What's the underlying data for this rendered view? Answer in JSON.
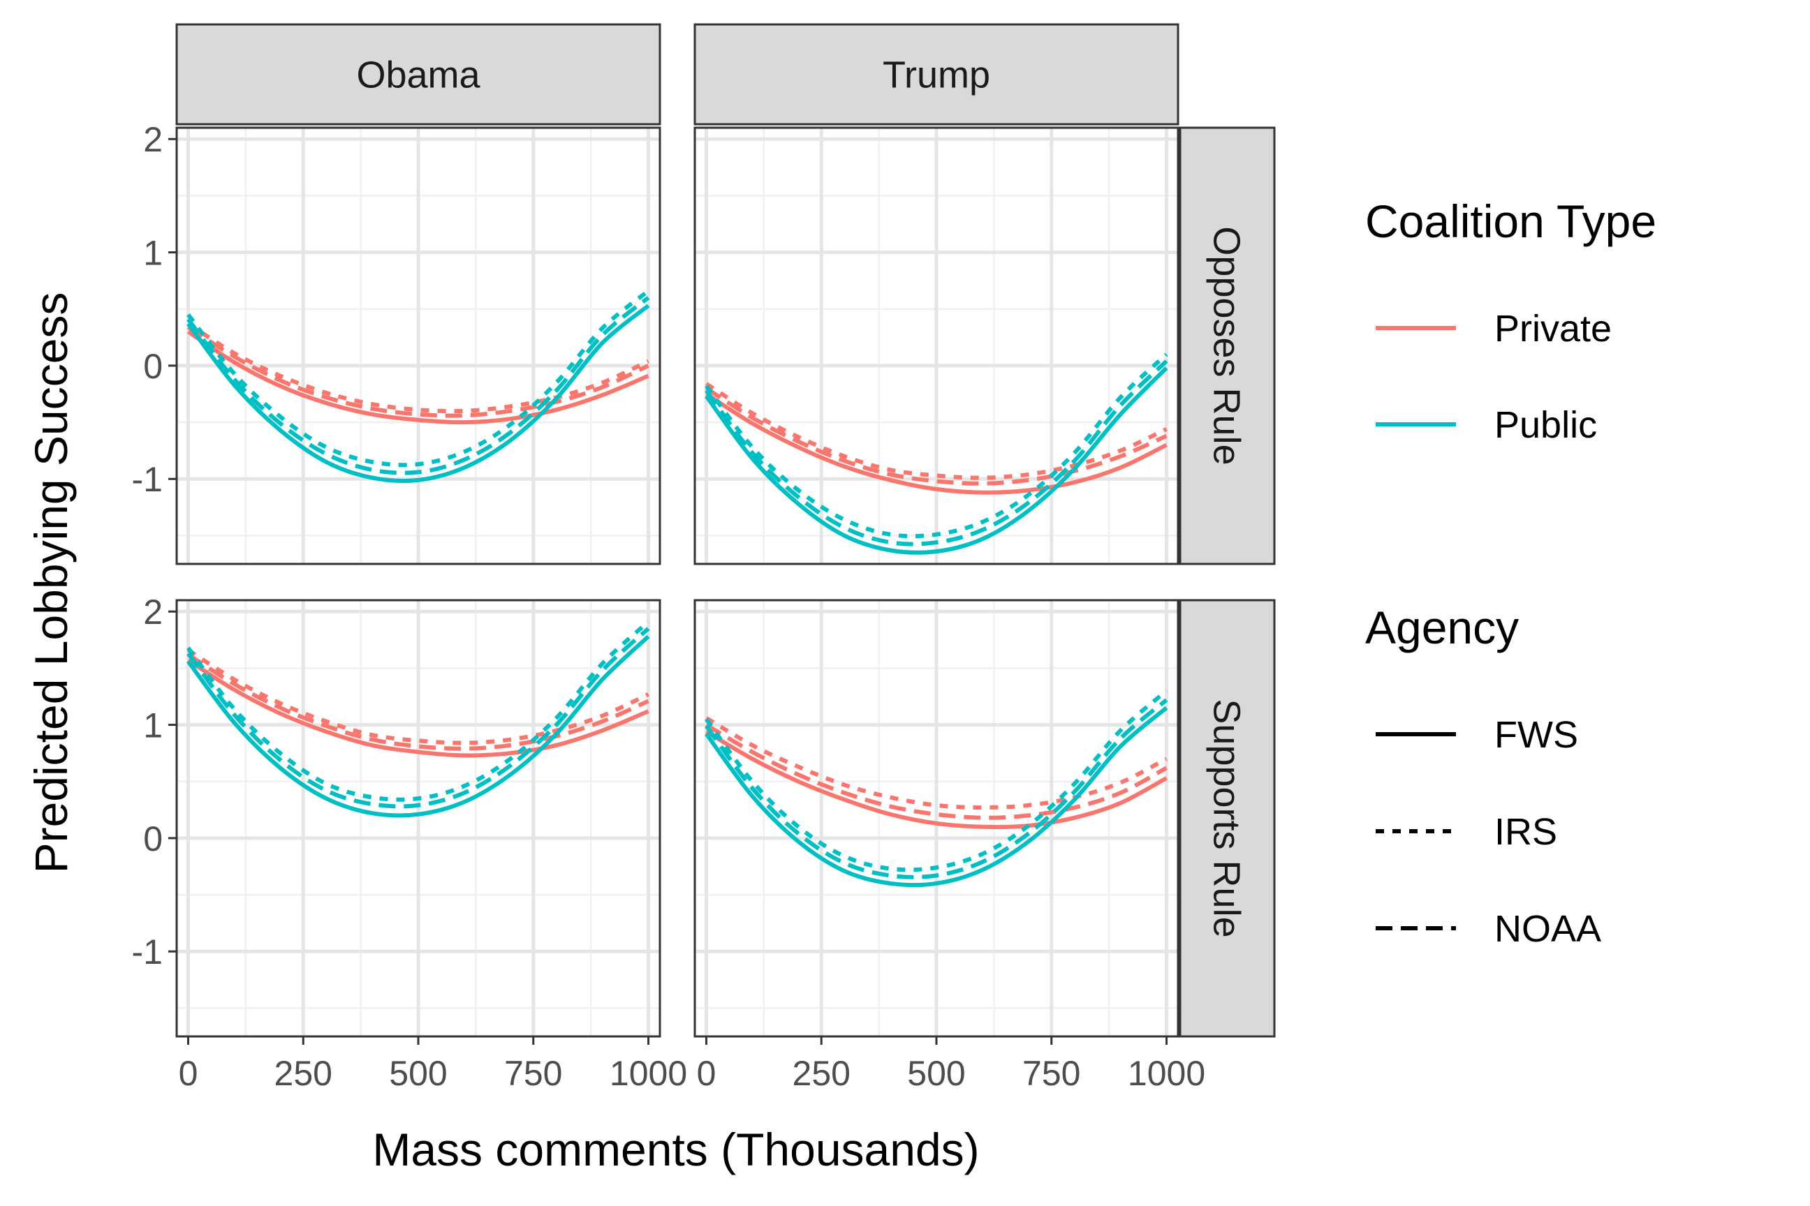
{
  "chart_data": {
    "type": "line",
    "facets": {
      "columns": [
        "Obama",
        "Trump"
      ],
      "rows": [
        "Opposes Rule",
        "Supports Rule"
      ]
    },
    "xlabel": "Mass comments (Thousands)",
    "ylabel": "Predicted Lobbying Success",
    "xlim": [
      -25,
      1025
    ],
    "ylim": [
      -1.75,
      2.1
    ],
    "x_ticks": [
      0,
      250,
      500,
      750,
      1000
    ],
    "x_tick_labels": [
      "0",
      "250",
      "500",
      "750",
      "1000"
    ],
    "y_ticks": [
      -1,
      0,
      1,
      2
    ],
    "y_tick_labels": [
      "-1",
      "0",
      "1",
      "2"
    ],
    "grid": true,
    "legend_position": "right",
    "legends": [
      {
        "title": "Coalition Type",
        "entries": [
          {
            "label": "Private",
            "color": "#F8766D"
          },
          {
            "label": "Public",
            "color": "#00BFC4"
          }
        ]
      },
      {
        "title": "Agency",
        "entries": [
          {
            "label": "FWS",
            "linetype": "solid"
          },
          {
            "label": "IRS",
            "linetype": "dotted"
          },
          {
            "label": "NOAA",
            "linetype": "dashed"
          }
        ]
      }
    ],
    "x": [
      0,
      100,
      200,
      300,
      400,
      500,
      600,
      700,
      800,
      900,
      1000
    ],
    "panels": [
      {
        "column": "Obama",
        "row": "Opposes Rule",
        "series": [
          {
            "coalition": "Private",
            "agency": "FWS",
            "values": [
              0.3,
              0.03,
              -0.18,
              -0.33,
              -0.43,
              -0.48,
              -0.5,
              -0.47,
              -0.39,
              -0.26,
              -0.09
            ]
          },
          {
            "coalition": "Private",
            "agency": "IRS",
            "values": [
              0.37,
              0.11,
              -0.09,
              -0.24,
              -0.34,
              -0.39,
              -0.4,
              -0.36,
              -0.28,
              -0.15,
              0.04
            ]
          },
          {
            "coalition": "Private",
            "agency": "NOAA",
            "values": [
              0.34,
              0.08,
              -0.13,
              -0.28,
              -0.38,
              -0.43,
              -0.44,
              -0.4,
              -0.32,
              -0.19,
              0.0
            ]
          },
          {
            "coalition": "Public",
            "agency": "FWS",
            "values": [
              0.37,
              -0.17,
              -0.57,
              -0.85,
              -0.99,
              -1.01,
              -0.9,
              -0.66,
              -0.29,
              0.2,
              0.53
            ]
          },
          {
            "coalition": "Public",
            "agency": "IRS",
            "values": [
              0.45,
              -0.07,
              -0.45,
              -0.72,
              -0.85,
              -0.87,
              -0.76,
              -0.52,
              -0.15,
              0.33,
              0.66
            ]
          },
          {
            "coalition": "Public",
            "agency": "NOAA",
            "values": [
              0.41,
              -0.12,
              -0.51,
              -0.78,
              -0.92,
              -0.94,
              -0.83,
              -0.59,
              -0.22,
              0.27,
              0.6
            ]
          }
        ]
      },
      {
        "column": "Trump",
        "row": "Opposes Rule",
        "series": [
          {
            "coalition": "Private",
            "agency": "FWS",
            "values": [
              -0.25,
              -0.51,
              -0.72,
              -0.89,
              -1.01,
              -1.09,
              -1.12,
              -1.1,
              -1.03,
              -0.9,
              -0.7
            ]
          },
          {
            "coalition": "Private",
            "agency": "IRS",
            "values": [
              -0.16,
              -0.42,
              -0.63,
              -0.8,
              -0.92,
              -0.97,
              -0.99,
              -0.96,
              -0.88,
              -0.75,
              -0.56
            ]
          },
          {
            "coalition": "Private",
            "agency": "NOAA",
            "values": [
              -0.2,
              -0.46,
              -0.67,
              -0.84,
              -0.96,
              -1.02,
              -1.04,
              -1.01,
              -0.93,
              -0.8,
              -0.62
            ]
          },
          {
            "coalition": "Public",
            "agency": "FWS",
            "values": [
              -0.27,
              -0.82,
              -1.22,
              -1.5,
              -1.63,
              -1.64,
              -1.53,
              -1.28,
              -0.91,
              -0.43,
              -0.02
            ]
          },
          {
            "coalition": "Public",
            "agency": "IRS",
            "values": [
              -0.18,
              -0.72,
              -1.1,
              -1.36,
              -1.49,
              -1.49,
              -1.38,
              -1.14,
              -0.77,
              -0.28,
              0.1
            ]
          },
          {
            "coalition": "Public",
            "agency": "NOAA",
            "values": [
              -0.22,
              -0.77,
              -1.16,
              -1.43,
              -1.56,
              -1.56,
              -1.45,
              -1.21,
              -0.84,
              -0.35,
              0.04
            ]
          }
        ]
      },
      {
        "column": "Obama",
        "row": "Supports Rule",
        "series": [
          {
            "coalition": "Private",
            "agency": "FWS",
            "values": [
              1.57,
              1.31,
              1.1,
              0.94,
              0.82,
              0.76,
              0.73,
              0.75,
              0.82,
              0.95,
              1.12
            ]
          },
          {
            "coalition": "Private",
            "agency": "IRS",
            "values": [
              1.66,
              1.4,
              1.19,
              1.03,
              0.91,
              0.86,
              0.84,
              0.87,
              0.95,
              1.08,
              1.27
            ]
          },
          {
            "coalition": "Private",
            "agency": "NOAA",
            "values": [
              1.62,
              1.36,
              1.15,
              0.99,
              0.87,
              0.81,
              0.79,
              0.82,
              0.9,
              1.03,
              1.21
            ]
          },
          {
            "coalition": "Public",
            "agency": "FWS",
            "values": [
              1.56,
              1.02,
              0.62,
              0.35,
              0.22,
              0.21,
              0.32,
              0.56,
              0.92,
              1.4,
              1.78
            ]
          },
          {
            "coalition": "Public",
            "agency": "IRS",
            "values": [
              1.68,
              1.14,
              0.75,
              0.48,
              0.36,
              0.35,
              0.46,
              0.7,
              1.06,
              1.54,
              1.91
            ]
          },
          {
            "coalition": "Public",
            "agency": "NOAA",
            "values": [
              1.63,
              1.09,
              0.69,
              0.42,
              0.3,
              0.29,
              0.4,
              0.64,
              1.0,
              1.48,
              1.85
            ]
          }
        ]
      },
      {
        "column": "Trump",
        "row": "Supports Rule",
        "series": [
          {
            "coalition": "Private",
            "agency": "FWS",
            "values": [
              0.94,
              0.7,
              0.5,
              0.34,
              0.21,
              0.13,
              0.1,
              0.11,
              0.18,
              0.31,
              0.53
            ]
          },
          {
            "coalition": "Private",
            "agency": "IRS",
            "values": [
              1.06,
              0.82,
              0.63,
              0.47,
              0.36,
              0.29,
              0.27,
              0.29,
              0.36,
              0.49,
              0.7
            ]
          },
          {
            "coalition": "Private",
            "agency": "NOAA",
            "values": [
              1.0,
              0.76,
              0.56,
              0.4,
              0.28,
              0.21,
              0.18,
              0.2,
              0.27,
              0.4,
              0.62
            ]
          },
          {
            "coalition": "Public",
            "agency": "FWS",
            "values": [
              0.92,
              0.37,
              -0.03,
              -0.29,
              -0.4,
              -0.4,
              -0.28,
              -0.03,
              0.34,
              0.81,
              1.15
            ]
          },
          {
            "coalition": "Public",
            "agency": "IRS",
            "values": [
              1.05,
              0.5,
              0.1,
              -0.16,
              -0.27,
              -0.26,
              -0.14,
              0.11,
              0.48,
              0.95,
              1.3
            ]
          },
          {
            "coalition": "Public",
            "agency": "NOAA",
            "values": [
              0.99,
              0.44,
              0.04,
              -0.22,
              -0.33,
              -0.33,
              -0.21,
              0.04,
              0.41,
              0.88,
              1.22
            ]
          }
        ]
      }
    ]
  }
}
